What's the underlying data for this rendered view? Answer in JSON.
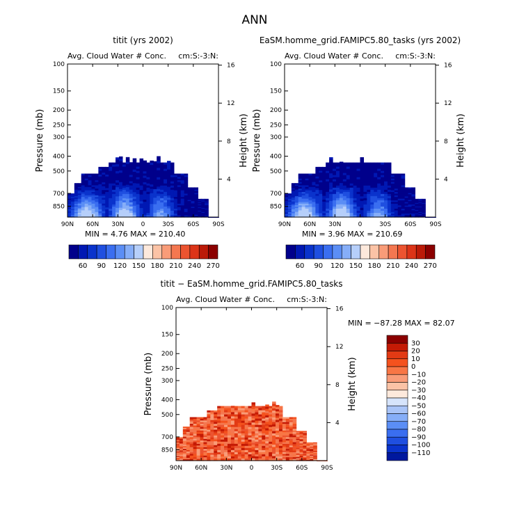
{
  "page_title": "ANN",
  "panels": [
    {
      "title": "titit (yrs 2002)",
      "variable": "Avg. Cloud Water # Conc.",
      "units": "cm:S:-3:N:",
      "min_max": "MIN =    4.76   MAX = 210.40",
      "field": "model"
    },
    {
      "title": "EaSM.homme_grid.FAMIPC5.80_tasks (yrs 2002)",
      "variable": "Avg. Cloud Water # Conc.",
      "units": "cm:S:-3:N:",
      "min_max": "MIN =    3.96   MAX = 210.69",
      "field": "model"
    },
    {
      "title": "titit  −  EaSM.homme_grid.FAMIPC5.80_tasks",
      "variable": "Avg. Cloud Water # Conc.",
      "units": "cm:S:-3:N:",
      "min_max": "MIN = −87.28   MAX =  82.07",
      "field": "diff"
    }
  ],
  "axes": {
    "ylabel": "Pressure (mb)",
    "y2label": "Height (km)",
    "x_ticks": [
      "90N",
      "60N",
      "30N",
      "0",
      "30S",
      "60S",
      "90S"
    ],
    "pressure_ticks": [
      "100",
      "150",
      "200",
      "250",
      "300",
      "400",
      "500",
      "700",
      "850"
    ],
    "height_ticks": [
      "16",
      "12",
      "8",
      "4"
    ]
  },
  "colorbar_model": {
    "labels": [
      "60",
      "90",
      "120",
      "150",
      "180",
      "210",
      "240",
      "270"
    ],
    "colors": [
      "#00008b",
      "#0018b3",
      "#0a33cc",
      "#1f4fe0",
      "#3a6ef0",
      "#5b8ef5",
      "#86aef8",
      "#b6cffa",
      "#fde9dc",
      "#fbc3a6",
      "#f99c78",
      "#f47750",
      "#ec5430",
      "#dc3418",
      "#bb1a08",
      "#8b0000"
    ]
  },
  "colorbar_diff": {
    "labels": [
      "30",
      "20",
      "10",
      "0",
      "−10",
      "−20",
      "−30",
      "−40",
      "−50",
      "−60",
      "−70",
      "−80",
      "−90",
      "−100",
      "−110"
    ],
    "colors": [
      "#8b0000",
      "#c41a05",
      "#e23a14",
      "#f4521e",
      "#f87645",
      "#f99c78",
      "#fbc3a6",
      "#fde9dc",
      "#d6e4fb",
      "#a9c4f7",
      "#86aef8",
      "#5b8ef5",
      "#3a6ef0",
      "#1f4fe0",
      "#0a33cc",
      "#00189e"
    ]
  },
  "chart_data": [
    {
      "type": "heatmap",
      "title": "titit (yrs 2002)",
      "subtitle": "Avg. Cloud Water # Conc.",
      "units": "cm:S:-3:N:",
      "xlabel": "",
      "ylabel": "Pressure (mb)",
      "y2label": "Height (km)",
      "x_range": [
        "90N",
        "90S"
      ],
      "ylim_mb": [
        100,
        1000
      ],
      "min": 4.76,
      "max": 210.4
    },
    {
      "type": "heatmap",
      "title": "EaSM.homme_grid.FAMIPC5.80_tasks (yrs 2002)",
      "subtitle": "Avg. Cloud Water # Conc.",
      "units": "cm:S:-3:N:",
      "xlabel": "",
      "ylabel": "Pressure (mb)",
      "y2label": "Height (km)",
      "x_range": [
        "90N",
        "90S"
      ],
      "ylim_mb": [
        100,
        1000
      ],
      "min": 3.96,
      "max": 210.69
    },
    {
      "type": "heatmap",
      "title": "titit − EaSM.homme_grid.FAMIPC5.80_tasks",
      "subtitle": "Avg. Cloud Water # Conc.",
      "units": "cm:S:-3:N:",
      "xlabel": "",
      "ylabel": "Pressure (mb)",
      "y2label": "Height (km)",
      "x_range": [
        "90N",
        "90S"
      ],
      "ylim_mb": [
        100,
        1000
      ],
      "min": -87.28,
      "max": 82.07
    }
  ]
}
